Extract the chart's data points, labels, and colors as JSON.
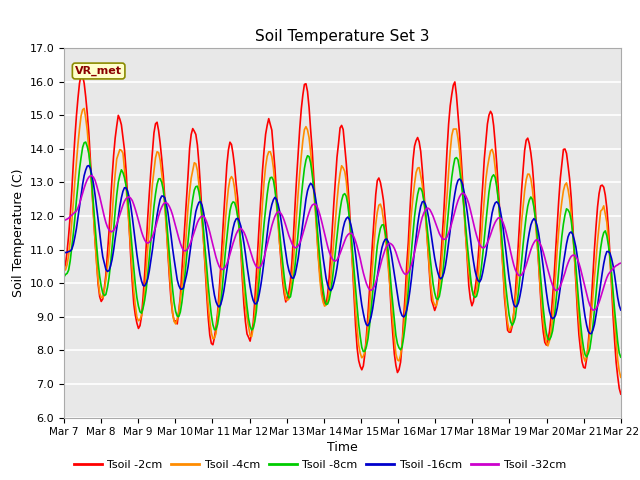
{
  "title": "Soil Temperature Set 3",
  "xlabel": "Time",
  "ylabel": "Soil Temperature (C)",
  "ylim": [
    6.0,
    17.0
  ],
  "yticks": [
    6.0,
    7.0,
    8.0,
    9.0,
    10.0,
    11.0,
    12.0,
    13.0,
    14.0,
    15.0,
    16.0,
    17.0
  ],
  "xtick_labels": [
    "Mar 7",
    "Mar 8",
    "Mar 9",
    "Mar 10",
    "Mar 11",
    "Mar 12",
    "Mar 13",
    "Mar 14",
    "Mar 15",
    "Mar 16",
    "Mar 17",
    "Mar 18",
    "Mar 19",
    "Mar 20",
    "Mar 21",
    "Mar 22"
  ],
  "annotation": "VR_met",
  "series_colors": [
    "#ff0000",
    "#ff8c00",
    "#00cc00",
    "#0000cc",
    "#cc00cc"
  ],
  "series_labels": [
    "Tsoil -2cm",
    "Tsoil -4cm",
    "Tsoil -8cm",
    "Tsoil -16cm",
    "Tsoil -32cm"
  ],
  "background_color": "#e8e8e8",
  "plot_bg_color": "#f0f0f0",
  "n_points": 360
}
